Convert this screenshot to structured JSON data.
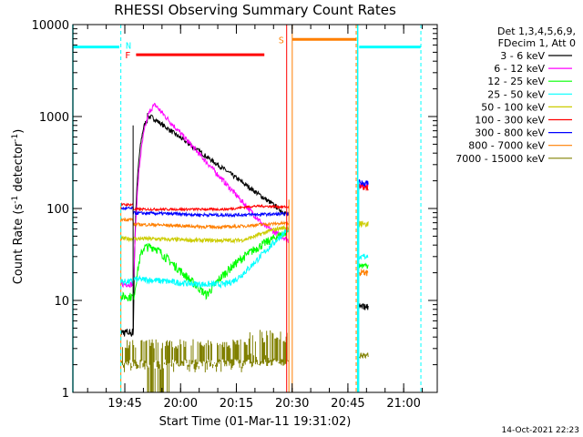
{
  "chart_data": {
    "type": "line",
    "title": "RHESSI Observing Summary Count Rates",
    "xlabel": "Start Time (01-Mar-11 19:31:02)",
    "ylabel_main": "Count Rate (s",
    "ylabel_sup1": "-1",
    "ylabel_mid": " detector",
    "ylabel_sup2": "-1",
    "ylabel_end": ")",
    "y_scale": "log",
    "ylim": [
      1,
      10000
    ],
    "xlim_minutes": [
      0,
      98
    ],
    "x_ticks": [
      {
        "label": "19:45",
        "minutes": 13.97
      },
      {
        "label": "20:00",
        "minutes": 28.97
      },
      {
        "label": "20:15",
        "minutes": 43.97
      },
      {
        "label": "20:30",
        "minutes": 58.97
      },
      {
        "label": "20:45",
        "minutes": 73.97
      },
      {
        "label": "21:00",
        "minutes": 88.97
      }
    ],
    "y_ticks": [
      {
        "label": "1",
        "value": 1
      },
      {
        "label": "10",
        "value": 10
      },
      {
        "label": "100",
        "value": 100
      },
      {
        "label": "1000",
        "value": 1000
      },
      {
        "label": "10000",
        "value": 10000
      }
    ],
    "legend_header": [
      "Det 1,3,4,5,6,9,",
      "FDecim 1, Att 0"
    ],
    "legend_position": "right",
    "series": [
      {
        "name": "3 - 6 keV",
        "color": "#000000"
      },
      {
        "name": "6 - 12 keV",
        "color": "#ff00ff"
      },
      {
        "name": "12 - 25 keV",
        "color": "#00ff00"
      },
      {
        "name": "25 - 50 keV",
        "color": "#00ffff"
      },
      {
        "name": "50 - 100 keV",
        "color": "#cccc00"
      },
      {
        "name": "100 - 300 keV",
        "color": "#ff0000"
      },
      {
        "name": "300 - 800 keV",
        "color": "#0000ff"
      },
      {
        "name": "800 - 7000 keV",
        "color": "#ff7f00"
      },
      {
        "name": "7000 - 15000 keV",
        "color": "#808000"
      }
    ],
    "flags": [
      {
        "label": "N",
        "color": "#00ffff"
      },
      {
        "label": "F",
        "color": "#ff0000"
      },
      {
        "label": "S",
        "color": "#ff7f00"
      }
    ],
    "footer_date": "14-Oct-2021 22:23"
  }
}
